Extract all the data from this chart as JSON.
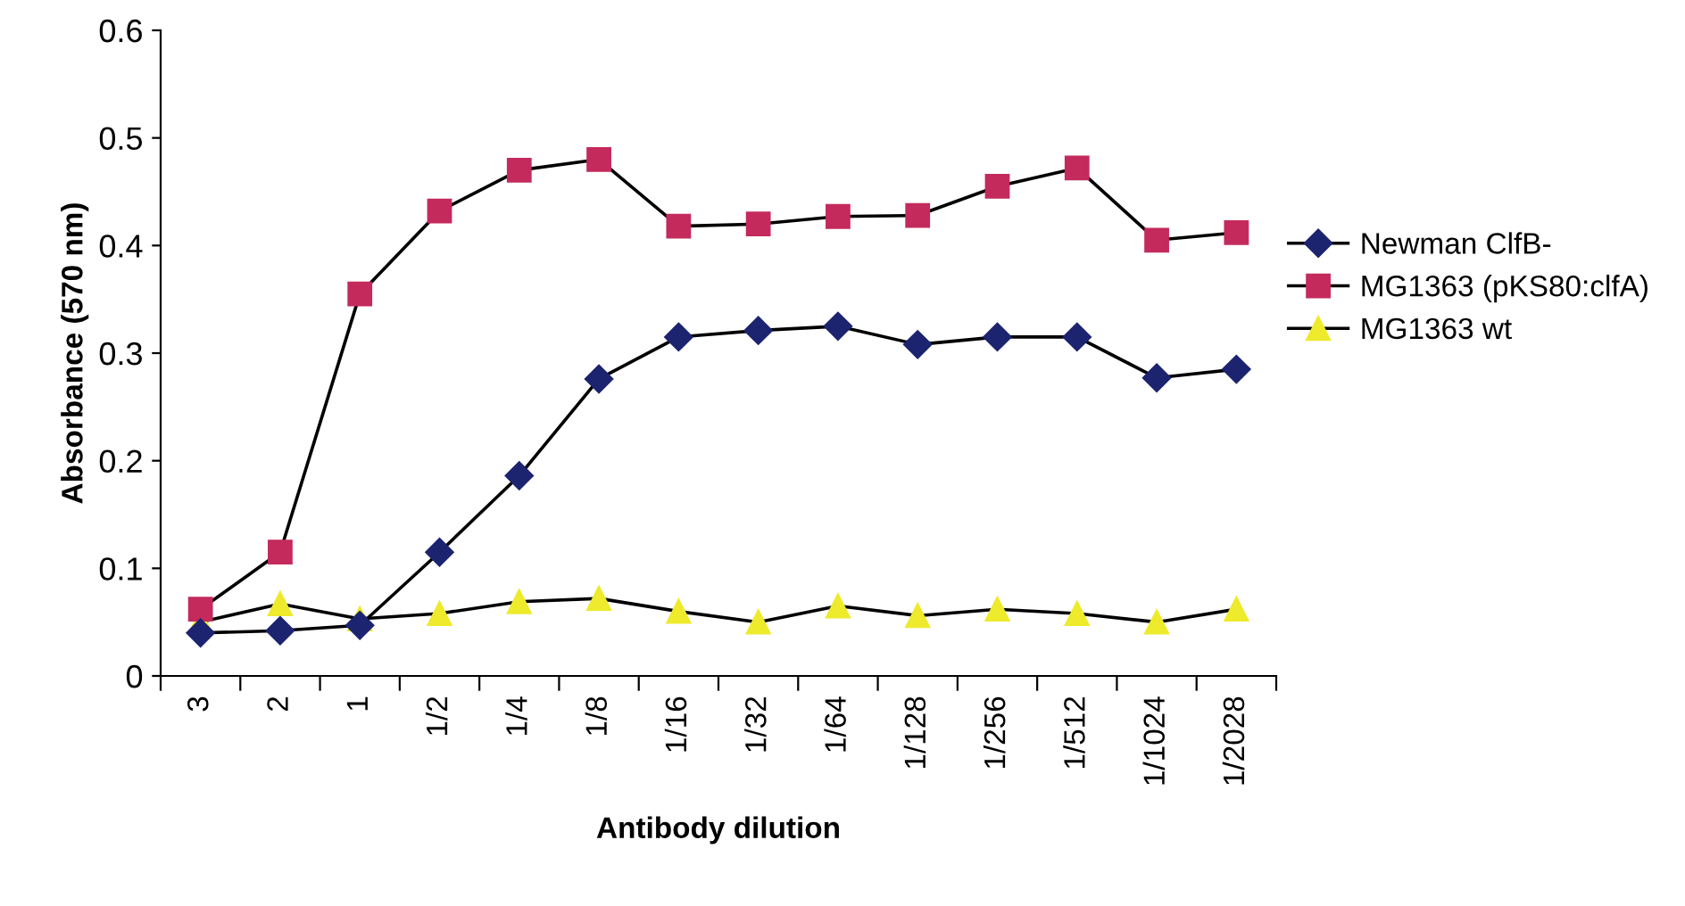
{
  "chart_data": {
    "type": "line",
    "xlabel": "Antibody dilution",
    "ylabel": "Absorbance (570 nm)",
    "categories": [
      "3",
      "2",
      "1",
      "1/2",
      "1/4",
      "1/8",
      "1/16",
      "1/32",
      "1/64",
      "1/128",
      "1/256",
      "1/512",
      "1/1024",
      "1/2028"
    ],
    "series": [
      {
        "name": "Newman ClfB-",
        "color": "#1c2470",
        "marker": "diamond",
        "values": [
          0.04,
          0.042,
          0.047,
          0.115,
          0.186,
          0.276,
          0.315,
          0.321,
          0.325,
          0.308,
          0.315,
          0.315,
          0.277,
          0.285
        ]
      },
      {
        "name": "MG1363 (pKS80:clfA)",
        "color": "#c42a5c",
        "marker": "square",
        "values": [
          0.062,
          0.115,
          0.355,
          0.432,
          0.47,
          0.48,
          0.418,
          0.42,
          0.427,
          0.428,
          0.455,
          0.472,
          0.405,
          0.412
        ]
      },
      {
        "name": "MG1363 wt",
        "color": "#eeea2c",
        "marker": "triangle",
        "values": [
          0.05,
          0.067,
          0.053,
          0.058,
          0.069,
          0.072,
          0.06,
          0.05,
          0.065,
          0.056,
          0.062,
          0.058,
          0.05,
          0.062
        ]
      }
    ],
    "ylim": [
      0,
      0.6
    ],
    "yticks": [
      0,
      0.1,
      0.2,
      0.3,
      0.4,
      0.5,
      0.6
    ],
    "grid": false,
    "legend": "right",
    "line_style": "solid"
  }
}
